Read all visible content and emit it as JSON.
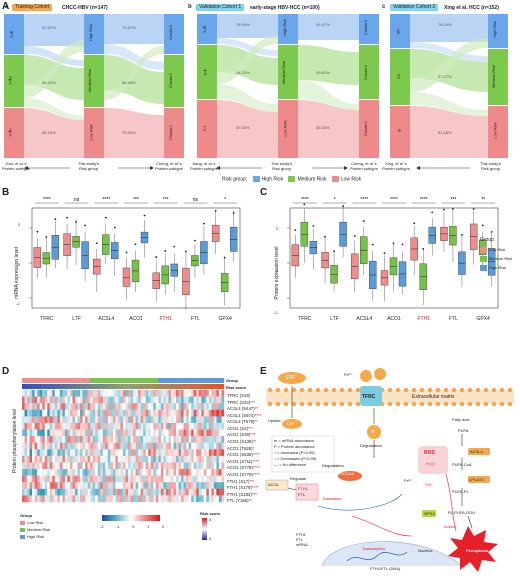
{
  "panel_letters": {
    "A": "A",
    "B": "B",
    "C": "C",
    "D": "D",
    "E": "E"
  },
  "panelA": {
    "a": {
      "letter": "a",
      "tag": "Training Cohort",
      "cohort": "CHCC-HBV (n=147)",
      "left_nodes": [
        "S-Ⅲ",
        "S-Ⅱa",
        "S-Ⅱb"
      ],
      "mid_nodes": [
        "High Risk",
        "Medium Risk",
        "Low Risk"
      ],
      "right_nodes": [
        "Cluster3",
        "Cluster2",
        "Cluster1"
      ],
      "pct_left": [
        "67.57%",
        "53.42%",
        "89.19%"
      ],
      "pct_right": [
        "72.97%",
        "66.48%",
        "79.39%"
      ],
      "bottom_left": "Gao, et al.'s\nProtein subtype",
      "bottom_mid": "This study's\nRisk group",
      "bottom_right": "Cheng, et al.'s\nProtein subtype"
    },
    "b": {
      "letter": "b",
      "tag": "Validation Cohort 1",
      "cohort": "early-stage HBV-HCC (n=100)",
      "left_nodes": [
        "S-Ⅲ",
        "S-Ⅱ",
        "S-Ⅰ"
      ],
      "mid_nodes": [
        "High Risk",
        "Medium Risk",
        "Low Risk"
      ],
      "right_nodes": [
        "Cluster3",
        "Cluster2",
        "Cluster1"
      ],
      "pct_left": [
        "75.00%",
        "44.23%",
        "87.50%"
      ],
      "pct_right": [
        "91.67%",
        "59.62%",
        "83.33%"
      ],
      "bottom_left": "Jiang, et al.'s\nProtein subtype",
      "bottom_mid": "This study's\nRisk group",
      "bottom_right": "Cheng, et al.'s\nProtein subtype"
    },
    "c": {
      "letter": "c",
      "tag": "Validation Cohort 2",
      "cohort": "Xing et al. HCC (n=152)",
      "left_nodes": [
        "SIII",
        "SII",
        "SI"
      ],
      "mid_nodes": [
        "High Risk",
        "Medium Risk",
        "Low Risk"
      ],
      "pct": [
        "76.19%",
        "47.27%",
        "91.18%"
      ],
      "bottom_left": "Xing, et al.'s\nProtein subtype",
      "bottom_mid": "This study's\nRisk group"
    },
    "legend": {
      "title": "Risk group:",
      "items": [
        "High Risk",
        "Medium Risk",
        "Low Risk"
      ]
    }
  },
  "panelB": {
    "ylabel": "mRNA expression level",
    "genes": [
      "TFRC",
      "LTF",
      "ACSL4",
      "ACO1",
      "FTH1",
      "FTL",
      "GPX4"
    ],
    "sig": [
      "****",
      "ns",
      "****",
      "***",
      "***",
      "ns",
      "*"
    ],
    "yticks": [
      "-2",
      "0",
      "2"
    ],
    "red_gene": "FTH1"
  },
  "panelC": {
    "ylabel": "Protein expression level",
    "genes": [
      "TFRC",
      "LTF",
      "ACSL4",
      "ACO1",
      "FTH1",
      "FTL",
      "GPX4"
    ],
    "sig": [
      "****",
      "*",
      "****",
      "****",
      "****",
      "***",
      "**"
    ],
    "yticks": [
      "-2",
      "0",
      "2"
    ],
    "red_gene": "FTH1"
  },
  "group_legend": {
    "title": "Group",
    "items": [
      "Low Risk",
      "Medium Risk",
      "High Risk"
    ]
  },
  "panelD": {
    "ylabel": "Protein phosphorylation level",
    "annot": [
      "Group",
      "Risk score"
    ],
    "rows": [
      "TFRC (S19)",
      "TFRC (S34)***",
      "ACSL4 (S447)**",
      "ACSL4 (S674)****",
      "ACSL4 (T679)**",
      "ACO1 (S2)***",
      "ACO1 (S30)***",
      "ACO1 (S138)**",
      "ACO1 (T628)*",
      "ACO1 (S638)****",
      "ACO1 (S711)****",
      "ACO1 (S778)****",
      "ACO1 (S779)****",
      "FTH1 (S17)***",
      "FTH1 (S179)****",
      "FTH1 (S183)***",
      "FTL (Y165)**"
    ],
    "group_legend": {
      "title": "Group",
      "items": [
        "Low Risk",
        "Medium Risk",
        "High Risk"
      ]
    },
    "scale": {
      "ticks": [
        "-2",
        "-1",
        "0",
        "1",
        "2"
      ]
    },
    "risk_legend": {
      "title": "Risk score",
      "hi": "3",
      "lo": "0"
    }
  },
  "panelE": {
    "labels": {
      "ltf": "LTF",
      "tf": "TF",
      "tfrc": "TFRC",
      "m": "m",
      "p": "P",
      "fe3": "Fe³⁺",
      "fe2": "Fe²⁺",
      "ecm": "Extracellular matrix",
      "uptake": "Uptake",
      "degradation": "Degradation",
      "ncoa4": "NCOA4",
      "fth1": "FTH1",
      "ftl": "FTL",
      "aco1": "ACO1",
      "regulate": "Regulate",
      "translation": "Translation",
      "mrna": "FTH1\nFTL\nmRNA",
      "transcription": "Transcription",
      "nucleus": "Nucleus",
      "dna": "FTH1/FTL (DNA)",
      "ros": "ROS",
      "h2o2": "H₂O₂",
      "oh": "·OH",
      "fatty": "Fatty acid",
      "pufa": "PUFA",
      "acsl4": "ACSL4",
      "pufacoa": "PUFA-CoA",
      "lpcat3": "LPCAT3",
      "pufapl": "PUFA-PL",
      "gpx4": "GPX4",
      "plooh": "PL-PUFA-OOH",
      "induce": "Induce",
      "ferroptosis": "Ferroptosis"
    },
    "key": [
      "m = mRNA abundance",
      "P = Protein abundance",
      "↑ = Increased (P<0.05)",
      "↓ = Decreased (P<0.05)",
      "— = No difference"
    ]
  },
  "colors": {
    "low": "#f08c8c",
    "medium": "#77c34a",
    "high": "#5b9bd9",
    "ferroptosis": "#e8202a",
    "accent_red": "#d7191c"
  }
}
